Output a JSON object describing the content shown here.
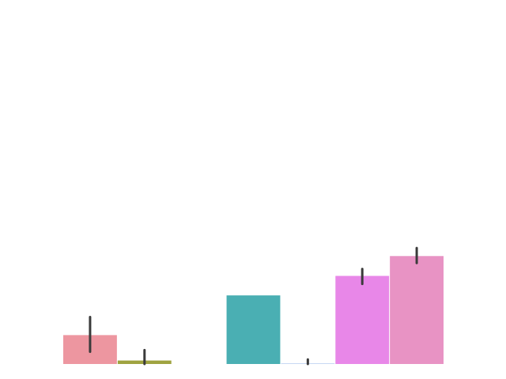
{
  "chart_data": {
    "type": "bar",
    "title": "",
    "xlabel": "",
    "ylabel": "",
    "axes_visible": false,
    "grid": false,
    "legend": "none",
    "ylim": [
      0,
      1.0
    ],
    "bars": [
      {
        "id": "bar-1",
        "value": 0.083,
        "ci": [
          0.035,
          0.135
        ],
        "color": "#ed96a0"
      },
      {
        "id": "bar-2",
        "value": 0.01,
        "ci": [
          0.0,
          0.04
        ],
        "color": "#9fa340"
      },
      {
        "id": "bar-3",
        "value": 0.0,
        "ci": null,
        "color": "#4cb389"
      },
      {
        "id": "bar-4",
        "value": 0.197,
        "ci": null,
        "color": "#4aafb3"
      },
      {
        "id": "bar-5",
        "value": 0.001,
        "ci": [
          0.0,
          0.013
        ],
        "color": "#83a7e6"
      },
      {
        "id": "bar-6",
        "value": 0.253,
        "ci": [
          0.23,
          0.273
        ],
        "color": "#e887e8"
      },
      {
        "id": "bar-7",
        "value": 0.31,
        "ci": [
          0.29,
          0.333
        ],
        "color": "#e893c4"
      }
    ],
    "errorbar_color": "#3b3b3b"
  }
}
